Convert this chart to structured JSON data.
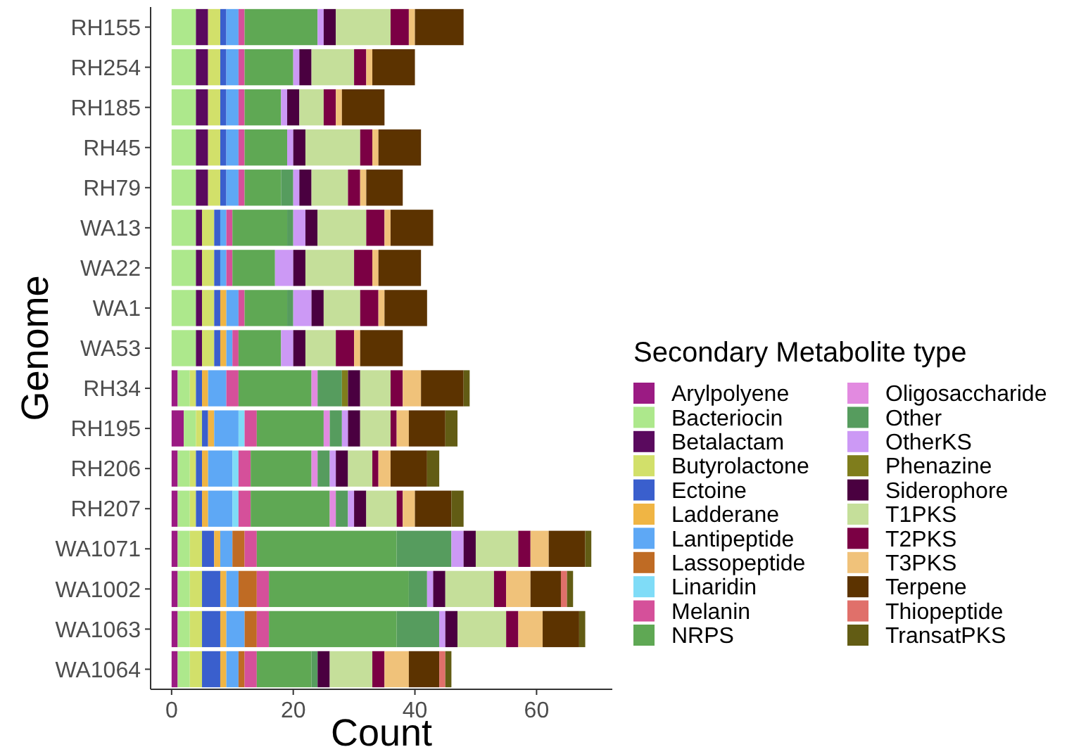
{
  "chart_data": {
    "type": "bar",
    "orientation": "horizontal",
    "stacked": true,
    "xlabel": "Count",
    "ylabel": "Genome",
    "legend_title": "Secondary Metabolite type",
    "legend": "right",
    "grid": false,
    "categories": [
      "RH155",
      "RH254",
      "RH185",
      "RH45",
      "RH79",
      "WA13",
      "WA22",
      "WA1",
      "WA53",
      "RH34",
      "RH195",
      "RH206",
      "RH207",
      "WA1071",
      "WA1002",
      "WA1063",
      "WA1064"
    ],
    "xlim": [
      -3.45,
      72.45
    ],
    "xticks": [
      0,
      20,
      40,
      60
    ],
    "series": [
      {
        "name": "Arylpolyene",
        "color": "#9b1b83",
        "values": [
          0,
          0,
          0,
          0,
          0,
          0,
          0,
          0,
          0,
          1,
          2,
          1,
          1,
          1,
          1,
          1,
          1
        ]
      },
      {
        "name": "Bacteriocin",
        "color": "#ade88c",
        "values": [
          4,
          4,
          4,
          4,
          4,
          4,
          4,
          4,
          4,
          2,
          2,
          2,
          2,
          2,
          2,
          2,
          2
        ]
      },
      {
        "name": "Betalactam",
        "color": "#5a0a5e",
        "values": [
          2,
          2,
          2,
          2,
          2,
          1,
          1,
          1,
          1,
          0,
          0,
          0,
          0,
          0,
          0,
          0,
          0
        ]
      },
      {
        "name": "Butyrolactone",
        "color": "#d2e06a",
        "values": [
          2,
          2,
          2,
          2,
          2,
          2,
          2,
          2,
          2,
          1,
          1,
          1,
          1,
          2,
          2,
          2,
          2
        ]
      },
      {
        "name": "Ectoine",
        "color": "#3a5fcd",
        "values": [
          1,
          1,
          1,
          1,
          1,
          1,
          1,
          1,
          1,
          1,
          1,
          1,
          1,
          2,
          3,
          3,
          3
        ]
      },
      {
        "name": "Ladderane",
        "color": "#f0b544",
        "values": [
          0,
          0,
          0,
          0,
          0,
          0,
          0,
          1,
          1,
          1,
          1,
          1,
          1,
          1,
          1,
          1,
          1
        ]
      },
      {
        "name": "Lantipeptide",
        "color": "#5ea8f5",
        "values": [
          2,
          2,
          2,
          2,
          2,
          1,
          1,
          2,
          1,
          3,
          4,
          4,
          4,
          2,
          2,
          3,
          2
        ]
      },
      {
        "name": "Lassopeptide",
        "color": "#bf6b24",
        "values": [
          0,
          0,
          0,
          0,
          0,
          0,
          0,
          0,
          0,
          0,
          0,
          0,
          0,
          2,
          3,
          2,
          1
        ]
      },
      {
        "name": "Linaridin",
        "color": "#7fdcf7",
        "values": [
          0,
          0,
          0,
          0,
          0,
          0,
          0,
          0,
          0,
          0,
          1,
          1,
          1,
          0,
          0,
          0,
          0
        ]
      },
      {
        "name": "Melanin",
        "color": "#d5509a",
        "values": [
          1,
          1,
          1,
          1,
          1,
          1,
          1,
          1,
          1,
          2,
          2,
          2,
          2,
          2,
          2,
          2,
          2
        ]
      },
      {
        "name": "NRPS",
        "color": "#5fa854",
        "values": [
          12,
          8,
          6,
          7,
          6,
          9,
          7,
          7,
          7,
          12,
          11,
          10,
          13,
          23,
          23,
          21,
          9
        ]
      },
      {
        "name": "Oligosaccharide",
        "color": "#e28ae0",
        "values": [
          0,
          0,
          0,
          0,
          0,
          0,
          0,
          0,
          0,
          1,
          1,
          1,
          1,
          0,
          0,
          0,
          0
        ]
      },
      {
        "name": "Other",
        "color": "#569c5e",
        "values": [
          0,
          0,
          0,
          0,
          2,
          1,
          0,
          1,
          0,
          4,
          2,
          2,
          2,
          9,
          3,
          7,
          1
        ]
      },
      {
        "name": "OtherKS",
        "color": "#cc99f5",
        "values": [
          1,
          1,
          1,
          1,
          1,
          2,
          3,
          3,
          2,
          0,
          1,
          1,
          1,
          2,
          1,
          1,
          0
        ]
      },
      {
        "name": "Phenazine",
        "color": "#7f7d1c",
        "values": [
          0,
          0,
          0,
          0,
          0,
          0,
          0,
          0,
          0,
          1,
          0,
          0,
          0,
          0,
          0,
          0,
          0
        ]
      },
      {
        "name": "Siderophore",
        "color": "#4a0040",
        "values": [
          2,
          2,
          2,
          2,
          2,
          2,
          2,
          2,
          2,
          2,
          2,
          2,
          2,
          2,
          2,
          2,
          2
        ]
      },
      {
        "name": "T1PKS",
        "color": "#c5df9a",
        "values": [
          9,
          7,
          4,
          9,
          6,
          8,
          8,
          6,
          5,
          5,
          5,
          4,
          5,
          7,
          8,
          8,
          7
        ]
      },
      {
        "name": "T2PKS",
        "color": "#7b0044",
        "values": [
          3,
          2,
          2,
          2,
          2,
          3,
          3,
          3,
          3,
          2,
          1,
          1,
          1,
          2,
          2,
          2,
          2
        ]
      },
      {
        "name": "T3PKS",
        "color": "#f0c27a",
        "values": [
          1,
          1,
          1,
          1,
          1,
          1,
          1,
          1,
          1,
          3,
          2,
          2,
          2,
          3,
          4,
          4,
          4
        ]
      },
      {
        "name": "Terpene",
        "color": "#5c3300",
        "values": [
          8,
          7,
          7,
          7,
          6,
          7,
          7,
          7,
          7,
          7,
          6,
          6,
          6,
          6,
          5,
          6,
          5
        ]
      },
      {
        "name": "Thiopeptide",
        "color": "#e0706a",
        "values": [
          0,
          0,
          0,
          0,
          0,
          0,
          0,
          0,
          0,
          0,
          0,
          0,
          0,
          0,
          1,
          0,
          1
        ]
      },
      {
        "name": "TransatPKS",
        "color": "#625c14",
        "values": [
          0,
          0,
          0,
          0,
          0,
          0,
          0,
          0,
          0,
          1,
          2,
          2,
          2,
          1,
          1,
          1,
          1
        ]
      }
    ]
  }
}
